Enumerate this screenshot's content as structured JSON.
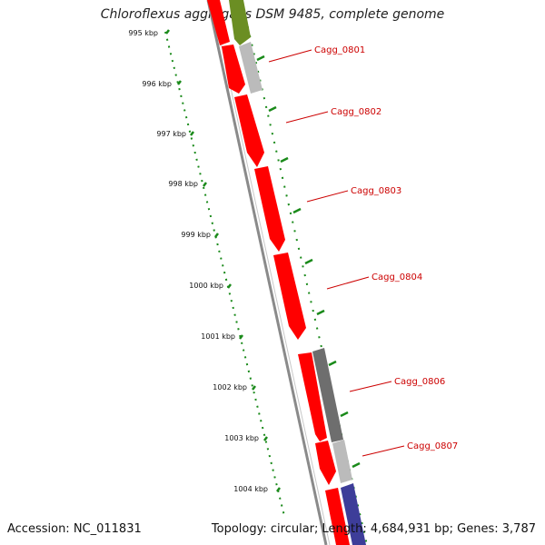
{
  "title": "Chloroflexus aggregans DSM 9485, complete genome",
  "footer": {
    "accession_label": "Accession: NC_011831",
    "summary": "Topology: circular; Length: 4,684,931 bp; Genes: 3,787"
  },
  "ruler": {
    "ticks": [
      "995 kbp",
      "996 kbp",
      "997 kbp",
      "998 kbp",
      "999 kbp",
      "1000 kbp",
      "1001 kbp",
      "1002 kbp",
      "1003 kbp",
      "1004 kbp"
    ]
  },
  "gene_labels": [
    "Cagg_0801",
    "Cagg_0802",
    "Cagg_0803",
    "Cagg_0804",
    "Cagg_0806",
    "Cagg_0807"
  ],
  "colors": {
    "cds": "#ff0000",
    "gene_gray": "#bbbbbb",
    "gene_dark": "#6e6e6e",
    "gene_olive": "#6b8e23",
    "gene_blue": "#3d3d99",
    "ruler": "#1a8a1a",
    "backbone": "#777777",
    "label": "#cc0000"
  }
}
